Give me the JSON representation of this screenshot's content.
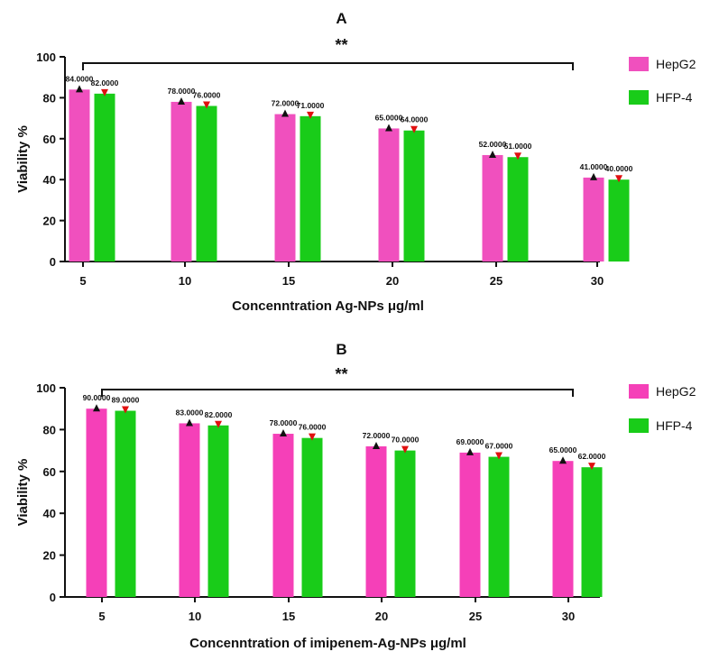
{
  "chart_data": [
    {
      "type": "bar",
      "title": "A",
      "xlabel": "Concenntration Ag-NPs μg/ml",
      "ylabel": "Viability %",
      "ylim": [
        0,
        100
      ],
      "yticks": [
        0,
        20,
        40,
        60,
        80,
        100
      ],
      "categories": [
        "5",
        "10",
        "15",
        "20",
        "25",
        "30"
      ],
      "significance": "**",
      "legend_position": "right",
      "grid": false,
      "series": [
        {
          "name": "HepG2",
          "color": "#f050be",
          "marker": "up-triangle",
          "marker_color": "#111111",
          "values": [
            84,
            78,
            72,
            65,
            52,
            41
          ],
          "labels": [
            "84.0000",
            "78.0000",
            "72.0000",
            "65.0000",
            "52.0000",
            "41.0000"
          ]
        },
        {
          "name": "HFP-4",
          "color": "#19cc19",
          "marker": "down-triangle",
          "marker_color": "#e01010",
          "values": [
            82,
            76,
            71,
            64,
            51,
            40
          ],
          "labels": [
            "82.0000",
            "76.0000",
            "71.0000",
            "64.0000",
            "51.0000",
            "40.0000"
          ]
        }
      ]
    },
    {
      "type": "bar",
      "title": "B",
      "xlabel": "Concenntration of  imipenem-Ag-NPs μg/ml",
      "ylabel": "Viability %",
      "ylim": [
        0,
        100
      ],
      "yticks": [
        0,
        20,
        40,
        60,
        80,
        100
      ],
      "categories": [
        "5",
        "10",
        "15",
        "20",
        "25",
        "30"
      ],
      "significance": "**",
      "legend_position": "right",
      "grid": false,
      "series": [
        {
          "name": "HepG2",
          "color": "#f540b8",
          "marker": "up-triangle",
          "marker_color": "#111111",
          "values": [
            90,
            83,
            78,
            72,
            69,
            65
          ],
          "labels": [
            "90.0000",
            "83.0000",
            "78.0000",
            "72.0000",
            "69.0000",
            "65.0000"
          ]
        },
        {
          "name": "HFP-4",
          "color": "#19cc19",
          "marker": "down-triangle",
          "marker_color": "#e01010",
          "values": [
            89,
            82,
            76,
            70,
            67,
            62
          ],
          "labels": [
            "89.0000",
            "82.0000",
            "76.0000",
            "70.0000",
            "67.0000",
            "62.0000"
          ]
        }
      ]
    }
  ]
}
